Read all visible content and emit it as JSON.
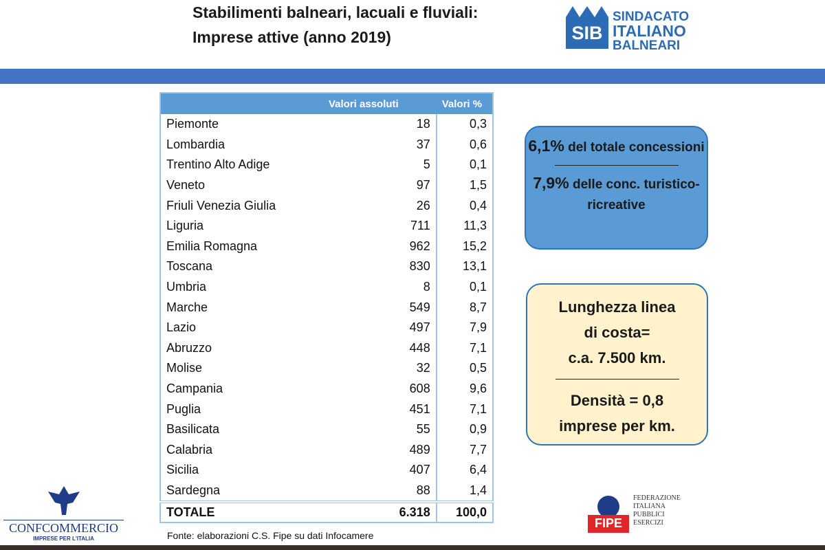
{
  "header": {
    "title_lines": [
      "Stabilimenti balneari, lacuali e fluviali:",
      "Imprese attive (anno 2019)"
    ]
  },
  "logo_sib": {
    "mark": "SIB",
    "lines": [
      "SINDACATO",
      "ITALIANO",
      "BALNEARI"
    ]
  },
  "table": {
    "columns": [
      "Valori assoluti",
      "Valori %"
    ],
    "rows": [
      [
        "Piemonte",
        "18",
        "0,3"
      ],
      [
        "Lombardia",
        "37",
        "0,6"
      ],
      [
        "Trentino Alto Adige",
        "5",
        "0,1"
      ],
      [
        "Veneto",
        "97",
        "1,5"
      ],
      [
        "Friuli Venezia Giulia",
        "26",
        "0,4"
      ],
      [
        "Liguria",
        "711",
        "11,3"
      ],
      [
        "Emilia Romagna",
        "962",
        "15,2"
      ],
      [
        "Toscana",
        "830",
        "13,1"
      ],
      [
        "Umbria",
        "8",
        "0,1"
      ],
      [
        "Marche",
        "549",
        "8,7"
      ],
      [
        "Lazio",
        "497",
        "7,9"
      ],
      [
        "Abruzzo",
        "448",
        "7,1"
      ],
      [
        "Molise",
        "32",
        "0,5"
      ],
      [
        "Campania",
        "608",
        "9,6"
      ],
      [
        "Puglia",
        "451",
        "7,1"
      ],
      [
        "Basilicata",
        "55",
        "0,9"
      ],
      [
        "Calabria",
        "489",
        "7,7"
      ],
      [
        "Sicilia",
        "407",
        "6,4"
      ],
      [
        "Sardegna",
        "88",
        "1,4"
      ]
    ],
    "total": [
      "TOTALE",
      "6.318",
      "100,0"
    ]
  },
  "box_concessioni": {
    "top_value": "6,1%",
    "top_text": "del totale concessioni",
    "bottom_value": "7,9%",
    "bottom_text": "delle conc. turistico- ricreative"
  },
  "box_costa": {
    "top_lines": [
      "Lunghezza linea",
      "di costa=",
      "c.a. 7.500 km."
    ],
    "bottom_lines": [
      "Densità = 0,8",
      "imprese per km."
    ]
  },
  "source": "Fonte: elaborazioni C.S. Fipe su dati Infocamere",
  "logo_confcommercio": {
    "name": "CONFCOMMERCIO",
    "tagline": "IMPRESE PER L'ITALIA"
  },
  "logo_fipe": {
    "mark": "FIPE",
    "lines": [
      "FEDERAZIONE",
      "ITALIANA",
      "PUBBLICI",
      "ESERCIZI"
    ]
  }
}
